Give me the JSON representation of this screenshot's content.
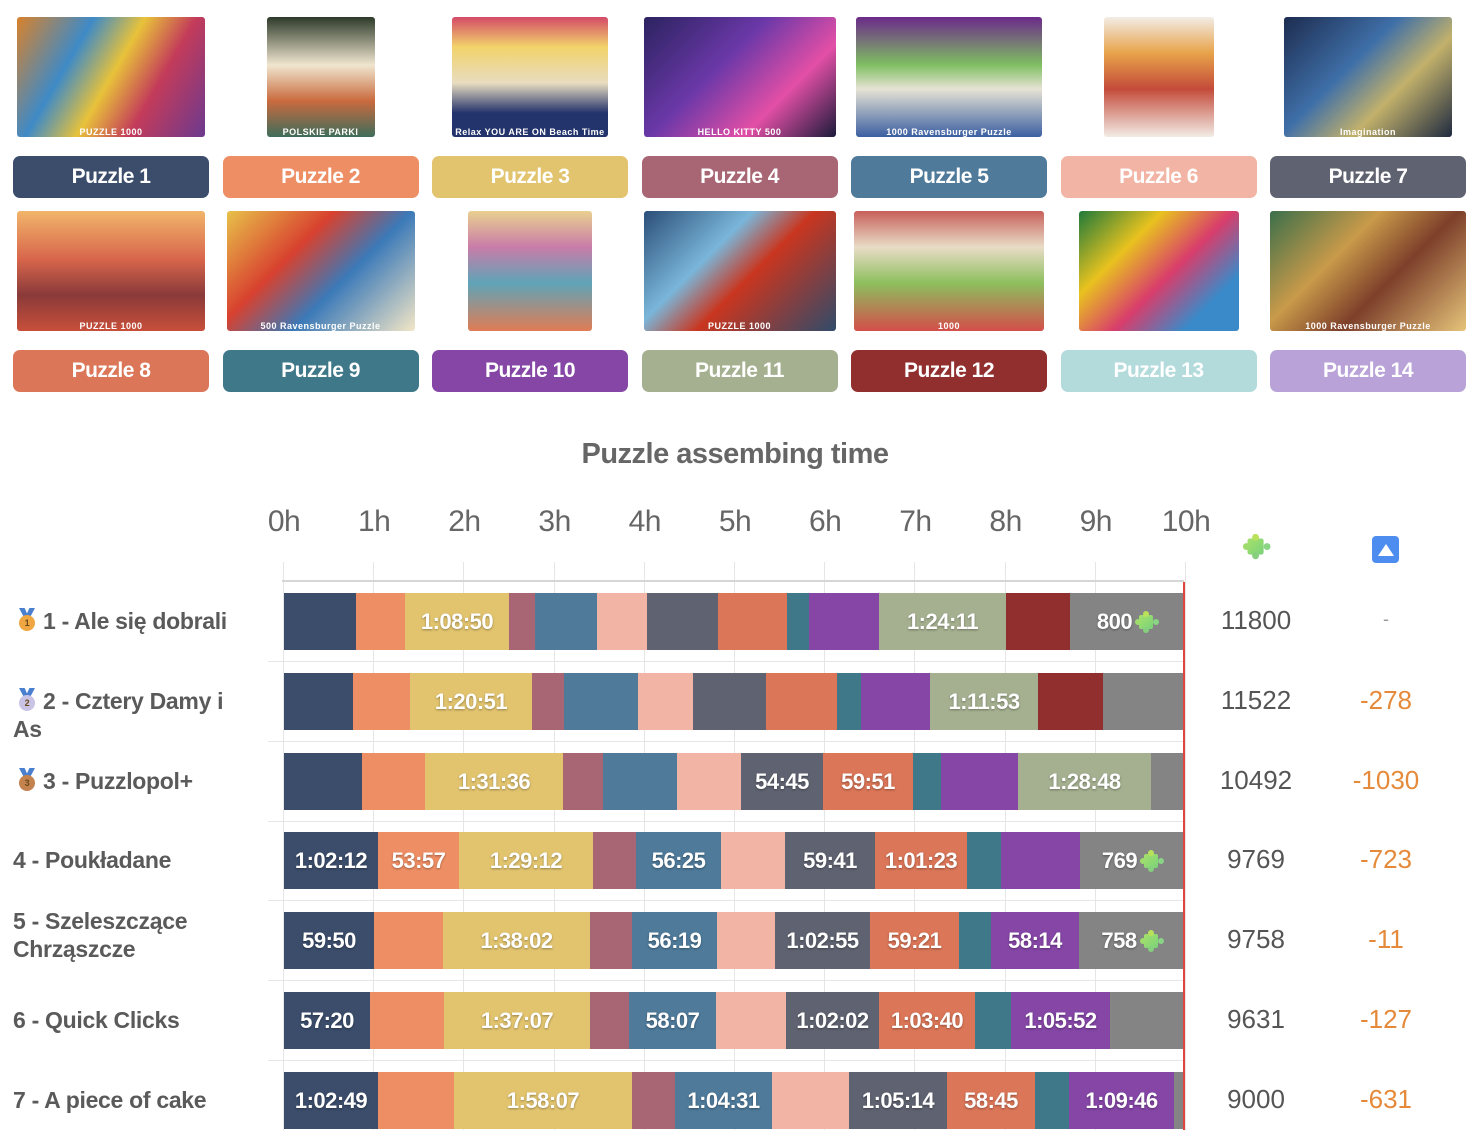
{
  "puzzles": [
    {
      "label": "Puzzle 1",
      "color": "#3b4d6b",
      "caption": "PUZZLE 1000"
    },
    {
      "label": "Puzzle 2",
      "color": "#ee8e64",
      "caption": "POLSKIE PARKI"
    },
    {
      "label": "Puzzle 3",
      "color": "#e2c46f",
      "caption": "Relax YOU ARE ON Beach Time"
    },
    {
      "label": "Puzzle 4",
      "color": "#a86674",
      "caption": "HELLO KITTY 500"
    },
    {
      "label": "Puzzle 5",
      "color": "#4f7a9a",
      "caption": "1000 Ravensburger Puzzle"
    },
    {
      "label": "Puzzle 6",
      "color": "#f2b4a4",
      "caption": ""
    },
    {
      "label": "Puzzle 7",
      "color": "#5f6270",
      "caption": "Imagination"
    },
    {
      "label": "Puzzle 8",
      "color": "#db7658",
      "caption": "PUZZLE 1000"
    },
    {
      "label": "Puzzle 9",
      "color": "#3e7889",
      "caption": "500 Ravensburger Puzzle"
    },
    {
      "label": "Puzzle 10",
      "color": "#8546a6",
      "caption": ""
    },
    {
      "label": "Puzzle 11",
      "color": "#a5b090",
      "caption": "PUZZLE 1000"
    },
    {
      "label": "Puzzle 12",
      "color": "#912f2e",
      "caption": "1000"
    },
    {
      "label": "Puzzle 13",
      "color": "#b4dbdc",
      "caption": ""
    },
    {
      "label": "Puzzle 14",
      "color": "#b8a2d8",
      "caption": "1000 Ravensburger Puzzle"
    }
  ],
  "remaining_color": "#848484",
  "header": {
    "pieces_icon": "puzzle-piece-icon",
    "diff_icon": "up-arrow-button-icon"
  },
  "chart_data": {
    "type": "bar",
    "orientation": "horizontal-stacked",
    "title": "Puzzle assembing time",
    "xlabel": "",
    "ylabel": "",
    "x_ticks": [
      "0h",
      "1h",
      "2h",
      "3h",
      "4h",
      "5h",
      "6h",
      "7h",
      "8h",
      "9h",
      "10h"
    ],
    "xlim_hours": [
      0,
      10
    ],
    "time_limit_hours": 10,
    "grid": true,
    "legend": "puzzle buttons above chart (Puzzle 1 .. Puzzle 14)",
    "unit_note": "segment values in hours (estimated from pixel widths); labeled segments show exact h:mm:ss",
    "teams": [
      {
        "rank": 1,
        "name": "1 - Ale się dobrali",
        "medal": "gold",
        "score": "11800",
        "diff": "-",
        "segments": [
          {
            "puzzle": 1,
            "hours": 0.8,
            "label": ""
          },
          {
            "puzzle": 2,
            "hours": 0.54,
            "label": ""
          },
          {
            "puzzle": 3,
            "hours": 1.148,
            "label": "1:08:50"
          },
          {
            "puzzle": 4,
            "hours": 0.29,
            "label": ""
          },
          {
            "puzzle": 5,
            "hours": 0.69,
            "label": ""
          },
          {
            "puzzle": 6,
            "hours": 0.55,
            "label": ""
          },
          {
            "puzzle": 7,
            "hours": 0.79,
            "label": ""
          },
          {
            "puzzle": 8,
            "hours": 0.76,
            "label": ""
          },
          {
            "puzzle": 9,
            "hours": 0.24,
            "label": ""
          },
          {
            "puzzle": 10,
            "hours": 0.78,
            "label": ""
          },
          {
            "puzzle": 11,
            "hours": 1.403,
            "label": "1:24:11"
          },
          {
            "puzzle": 12,
            "hours": 0.71,
            "label": ""
          },
          {
            "puzzle": "remaining",
            "hours": 1.25,
            "label": "800",
            "icon": true
          }
        ]
      },
      {
        "rank": 2,
        "name": "2 - Cztery Damy i As",
        "medal": "silver",
        "score": "11522",
        "diff": "-278",
        "segments": [
          {
            "puzzle": 1,
            "hours": 0.77,
            "label": ""
          },
          {
            "puzzle": 2,
            "hours": 0.63,
            "label": ""
          },
          {
            "puzzle": 3,
            "hours": 1.348,
            "label": "1:20:51"
          },
          {
            "puzzle": 4,
            "hours": 0.35,
            "label": ""
          },
          {
            "puzzle": 5,
            "hours": 0.82,
            "label": ""
          },
          {
            "puzzle": 6,
            "hours": 0.61,
            "label": ""
          },
          {
            "puzzle": 7,
            "hours": 0.81,
            "label": ""
          },
          {
            "puzzle": 8,
            "hours": 0.79,
            "label": ""
          },
          {
            "puzzle": 9,
            "hours": 0.27,
            "label": ""
          },
          {
            "puzzle": 10,
            "hours": 0.76,
            "label": ""
          },
          {
            "puzzle": 11,
            "hours": 1.198,
            "label": "1:11:53"
          },
          {
            "puzzle": 12,
            "hours": 0.72,
            "label": ""
          },
          {
            "puzzle": "remaining",
            "hours": 0.9,
            "label": "",
            "icon": false
          }
        ]
      },
      {
        "rank": 3,
        "name": "3 - Puzzlopol+",
        "medal": "bronze",
        "score": "10492",
        "diff": "-1030",
        "segments": [
          {
            "puzzle": 1,
            "hours": 0.86,
            "label": ""
          },
          {
            "puzzle": 2,
            "hours": 0.7,
            "label": ""
          },
          {
            "puzzle": 3,
            "hours": 1.527,
            "label": "1:31:36"
          },
          {
            "puzzle": 4,
            "hours": 0.44,
            "label": ""
          },
          {
            "puzzle": 5,
            "hours": 0.82,
            "label": ""
          },
          {
            "puzzle": 6,
            "hours": 0.71,
            "label": ""
          },
          {
            "puzzle": 7,
            "hours": 0.913,
            "label": "54:45"
          },
          {
            "puzzle": 8,
            "hours": 0.998,
            "label": "59:51"
          },
          {
            "puzzle": 9,
            "hours": 0.31,
            "label": ""
          },
          {
            "puzzle": 10,
            "hours": 0.85,
            "label": ""
          },
          {
            "puzzle": 11,
            "hours": 1.48,
            "label": "1:28:48"
          },
          {
            "puzzle": "remaining",
            "hours": 0.34,
            "label": "",
            "icon": false
          }
        ]
      },
      {
        "rank": 4,
        "name": "4 - Poukładane",
        "medal": "",
        "score": "9769",
        "diff": "-723",
        "segments": [
          {
            "puzzle": 1,
            "hours": 1.037,
            "label": "1:02:12"
          },
          {
            "puzzle": 2,
            "hours": 0.899,
            "label": "53:57"
          },
          {
            "puzzle": 3,
            "hours": 1.487,
            "label": "1:29:12"
          },
          {
            "puzzle": 4,
            "hours": 0.48,
            "label": ""
          },
          {
            "puzzle": 5,
            "hours": 0.94,
            "label": "56:25"
          },
          {
            "puzzle": 6,
            "hours": 0.71,
            "label": ""
          },
          {
            "puzzle": 7,
            "hours": 0.995,
            "label": "59:41"
          },
          {
            "puzzle": 8,
            "hours": 1.023,
            "label": "1:01:23"
          },
          {
            "puzzle": 9,
            "hours": 0.38,
            "label": ""
          },
          {
            "puzzle": 10,
            "hours": 0.88,
            "label": ""
          },
          {
            "puzzle": "remaining",
            "hours": 1.17,
            "label": "769",
            "icon": true
          }
        ]
      },
      {
        "rank": 5,
        "name": "5 - Szeleszczące Chrząszcze",
        "medal": "",
        "score": "9758",
        "diff": "-11",
        "segments": [
          {
            "puzzle": 1,
            "hours": 0.997,
            "label": "59:50"
          },
          {
            "puzzle": 2,
            "hours": 0.77,
            "label": ""
          },
          {
            "puzzle": 3,
            "hours": 1.634,
            "label": "1:38:02"
          },
          {
            "puzzle": 4,
            "hours": 0.47,
            "label": ""
          },
          {
            "puzzle": 5,
            "hours": 0.939,
            "label": "56:19"
          },
          {
            "puzzle": 6,
            "hours": 0.64,
            "label": ""
          },
          {
            "puzzle": 7,
            "hours": 1.049,
            "label": "1:02:55"
          },
          {
            "puzzle": 8,
            "hours": 0.989,
            "label": "59:21"
          },
          {
            "puzzle": 9,
            "hours": 0.35,
            "label": ""
          },
          {
            "puzzle": 10,
            "hours": 0.971,
            "label": "58:14"
          },
          {
            "puzzle": "remaining",
            "hours": 1.17,
            "label": "758",
            "icon": true
          }
        ]
      },
      {
        "rank": 6,
        "name": "6 - Quick Clicks",
        "medal": "",
        "score": "9631",
        "diff": "-127",
        "segments": [
          {
            "puzzle": 1,
            "hours": 0.956,
            "label": "57:20"
          },
          {
            "puzzle": 2,
            "hours": 0.82,
            "label": ""
          },
          {
            "puzzle": 3,
            "hours": 1.619,
            "label": "1:37:07"
          },
          {
            "puzzle": 4,
            "hours": 0.43,
            "label": ""
          },
          {
            "puzzle": 5,
            "hours": 0.969,
            "label": "58:07"
          },
          {
            "puzzle": 6,
            "hours": 0.78,
            "label": ""
          },
          {
            "puzzle": 7,
            "hours": 1.034,
            "label": "1:02:02"
          },
          {
            "puzzle": 8,
            "hours": 1.061,
            "label": "1:03:40"
          },
          {
            "puzzle": 9,
            "hours": 0.4,
            "label": ""
          },
          {
            "puzzle": 10,
            "hours": 1.098,
            "label": "1:05:52"
          },
          {
            "puzzle": "remaining",
            "hours": 0.82,
            "label": "",
            "icon": false
          }
        ]
      },
      {
        "rank": 7,
        "name": "7 - A piece of cake",
        "medal": "",
        "score": "9000",
        "diff": "-631",
        "segments": [
          {
            "puzzle": 1,
            "hours": 1.047,
            "label": "1:02:49"
          },
          {
            "puzzle": 2,
            "hours": 0.84,
            "label": ""
          },
          {
            "puzzle": 3,
            "hours": 1.969,
            "label": "1:58:07"
          },
          {
            "puzzle": 4,
            "hours": 0.48,
            "label": ""
          },
          {
            "puzzle": 5,
            "hours": 1.075,
            "label": "1:04:31"
          },
          {
            "puzzle": 6,
            "hours": 0.85,
            "label": ""
          },
          {
            "puzzle": 7,
            "hours": 1.087,
            "label": "1:05:14"
          },
          {
            "puzzle": 8,
            "hours": 0.979,
            "label": "58:45"
          },
          {
            "puzzle": 9,
            "hours": 0.38,
            "label": ""
          },
          {
            "puzzle": 10,
            "hours": 1.163,
            "label": "1:09:46"
          },
          {
            "puzzle": "remaining",
            "hours": 0.14,
            "label": "",
            "icon": false
          }
        ]
      }
    ]
  }
}
